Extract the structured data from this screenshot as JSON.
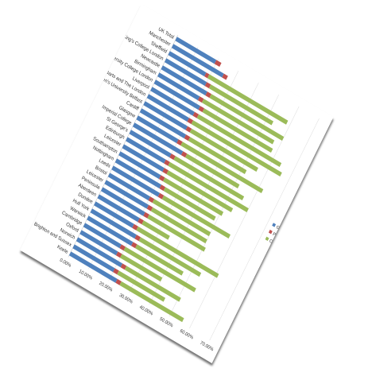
{
  "chart_data": {
    "type": "bar",
    "stacked": true,
    "orientation": "horizontal",
    "categories": [
      "UK Total",
      "Manchester",
      "Sheffield",
      "King's College London",
      "Newcastle",
      "Birmingham",
      "University College London",
      "Liverpool",
      "Barts and The London",
      "Queen's University Belfast",
      "Cardiff",
      "Glasgow",
      "Imperial College",
      "St George's",
      "Edinburgh",
      "Leicester",
      "Southampton",
      "Nottingham",
      "Leeds",
      "Bristol",
      "Leicester",
      "Peninsula",
      "Aberdeen",
      "Dundee",
      "Hull York",
      "Warwick",
      "Cambridge",
      "Oxford",
      "Norwich",
      "Brighton and Sussex",
      "Keele"
    ],
    "series": [
      {
        "name": "GP",
        "color": "#4f81bd",
        "values": [
          19.5,
          25,
          18,
          20,
          22,
          20,
          22,
          21,
          20,
          21,
          22,
          20,
          24,
          20,
          19,
          20,
          20,
          22,
          23,
          20,
          21,
          21,
          20,
          19,
          22,
          22,
          18,
          18,
          22,
          20,
          23
        ]
      },
      {
        "name": "Psychiatry",
        "color": "#c0504d",
        "values": [
          2.5,
          2,
          1.5,
          2,
          2,
          2,
          2,
          2,
          2,
          2,
          2,
          2,
          2,
          2,
          2,
          2,
          2,
          2,
          2,
          2,
          2,
          2,
          2,
          2,
          2,
          2,
          2,
          2,
          2,
          2,
          2
        ]
      },
      {
        "name": "Other GP",
        "color": "#9bbb59",
        "values": [
          0,
          0,
          39,
          31,
          36,
          35,
          34,
          41,
          44,
          33,
          28,
          40,
          26,
          34,
          39,
          32,
          29,
          25,
          33,
          28,
          27,
          28,
          13,
          40,
          30,
          23,
          35,
          20,
          27,
          23,
          31
        ]
      }
    ],
    "x_tick_labels": [
      "0.00%",
      "10.00%",
      "20.00%",
      "30.00%",
      "40.00%",
      "50.00%",
      "60.00%",
      "70.00%"
    ],
    "xlim": [
      0,
      70
    ],
    "grid": true,
    "legend_position": "right",
    "title": "",
    "xlabel": "",
    "ylabel": ""
  }
}
